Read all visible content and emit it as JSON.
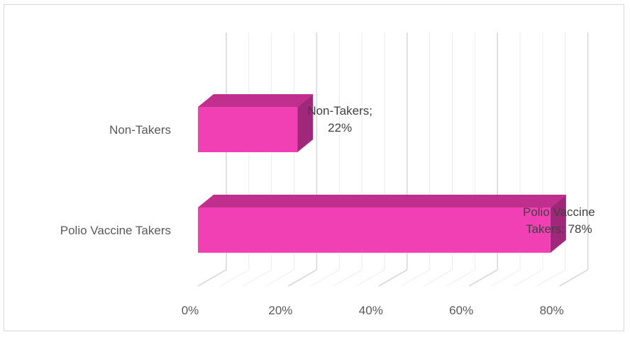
{
  "chart_data": {
    "type": "bar",
    "orientation": "horizontal",
    "style": "3d",
    "categories": [
      "Non-Takers",
      "Polio Vaccine Takers"
    ],
    "values": [
      22,
      78
    ],
    "value_unit": "%",
    "data_labels": [
      [
        "Non-Takers;",
        "22%"
      ],
      [
        "Polio Vaccine",
        "Takers; 78%"
      ]
    ],
    "x_ticks": [
      "0%",
      "20%",
      "40%",
      "60%",
      "80%"
    ],
    "xlim": [
      0,
      80
    ],
    "title": "",
    "xlabel": "",
    "ylabel": "",
    "grid": true,
    "legend": "none",
    "colors": {
      "bar_front": "#f040b4",
      "bar_top": "#c02e8e",
      "bar_side": "#a0287a",
      "gridline": "#d9d9d9"
    }
  }
}
